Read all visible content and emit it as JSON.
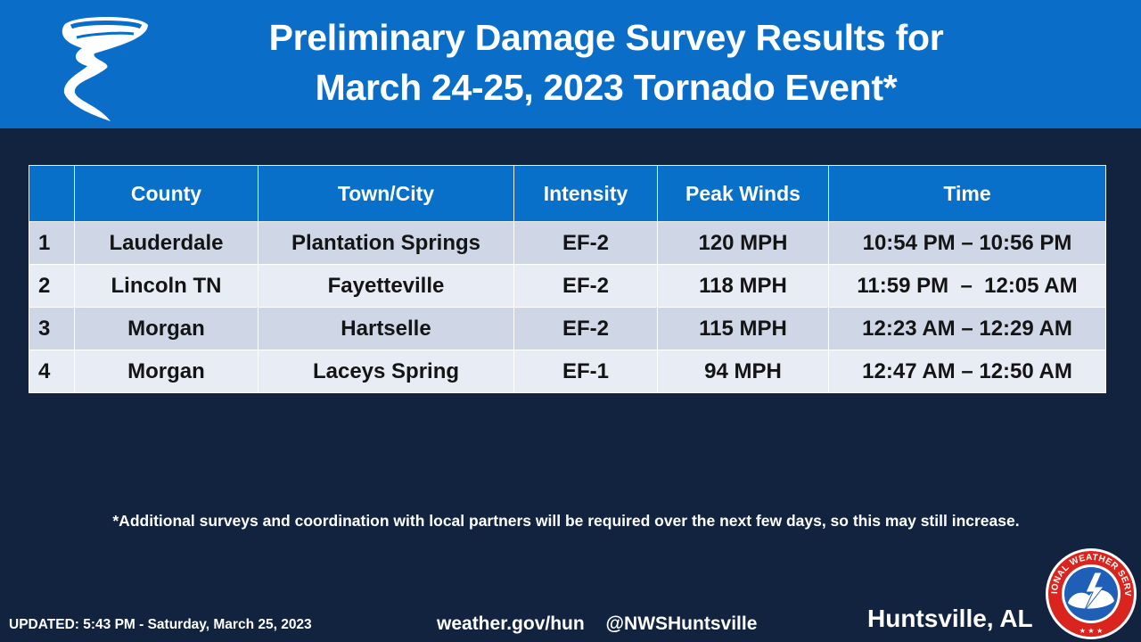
{
  "header": {
    "title_line1": "Preliminary Damage Survey Results for",
    "title_line2": "March 24-25, 2023 Tornado Event*"
  },
  "table": {
    "columns": [
      "",
      "County",
      "Town/City",
      "Intensity",
      "Peak Winds",
      "Time"
    ],
    "rows": [
      {
        "num": "1",
        "county": "Lauderdale",
        "town": "Plantation Springs",
        "intensity": "EF-2",
        "winds": "120 MPH",
        "time": "10:54 PM – 10:56 PM"
      },
      {
        "num": "2",
        "county": "Lincoln TN",
        "town": "Fayetteville",
        "intensity": "EF-2",
        "winds": "118 MPH",
        "time": "11:59 PM  –  12:05 AM"
      },
      {
        "num": "3",
        "county": "Morgan",
        "town": "Hartselle",
        "intensity": "EF-2",
        "winds": "115 MPH",
        "time": "12:23 AM – 12:29 AM"
      },
      {
        "num": "4",
        "county": "Morgan",
        "town": "Laceys Spring",
        "intensity": "EF-1",
        "winds": "94 MPH",
        "time": "12:47 AM – 12:50 AM"
      }
    ]
  },
  "footnote": "*Additional surveys and coordination with local partners will be required over the next few days, so this may still increase.",
  "footer": {
    "updated": "UPDATED: 5:43 PM - Saturday, March 25, 2023",
    "website": "weather.gov/hun",
    "handle": "@NWSHuntsville",
    "city": "Huntsville, AL"
  },
  "logo": {
    "text": "NATIONAL WEATHER SERVICE",
    "icon": "nws-logo-icon"
  },
  "colors": {
    "header_bg": "#0a6ec8",
    "page_bg": "#12233f",
    "table_header_bg": "#0870c8",
    "row_odd": "#cfd6e6",
    "row_even": "#e8ecf4"
  }
}
